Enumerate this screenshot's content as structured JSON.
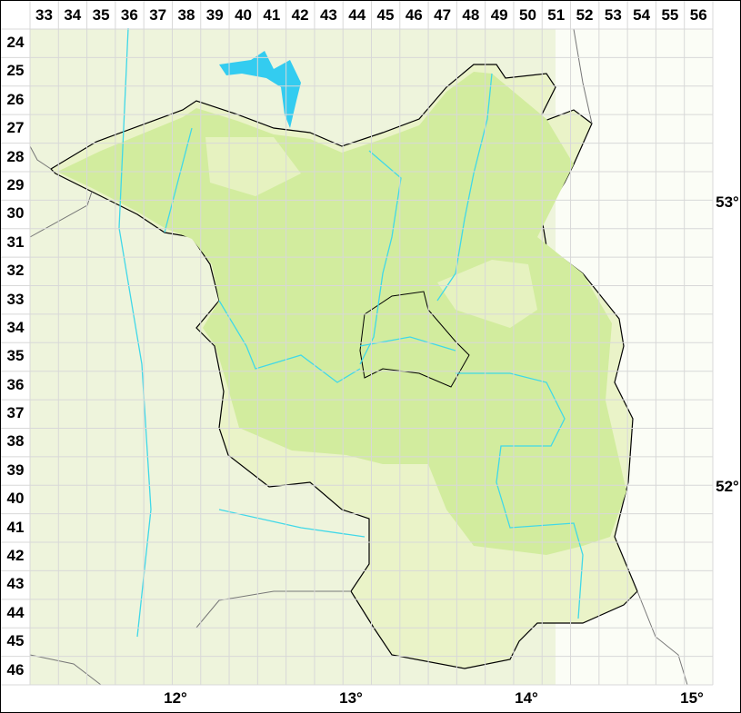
{
  "grid": {
    "columns": [
      "33",
      "34",
      "35",
      "36",
      "37",
      "38",
      "39",
      "40",
      "41",
      "42",
      "43",
      "44",
      "45",
      "46",
      "47",
      "48",
      "49",
      "50",
      "51",
      "52",
      "53",
      "54",
      "55",
      "56"
    ],
    "rows": [
      "24",
      "25",
      "26",
      "27",
      "28",
      "29",
      "30",
      "31",
      "32",
      "33",
      "34",
      "35",
      "36",
      "37",
      "38",
      "39",
      "40",
      "41",
      "42",
      "43",
      "44",
      "45",
      "46"
    ]
  },
  "longitude_labels": [
    "12°",
    "13°",
    "14°",
    "15°"
  ],
  "latitude_labels": [
    "53°",
    "52°"
  ],
  "colors": {
    "background_land": "#eef4dc",
    "region_fill": "#e8f2c4",
    "dense_fill": "#d0ec9c",
    "river": "#40d8e8",
    "lake": "#33ccf0",
    "border": "#000000",
    "grid_line": "#d8d8d8"
  }
}
